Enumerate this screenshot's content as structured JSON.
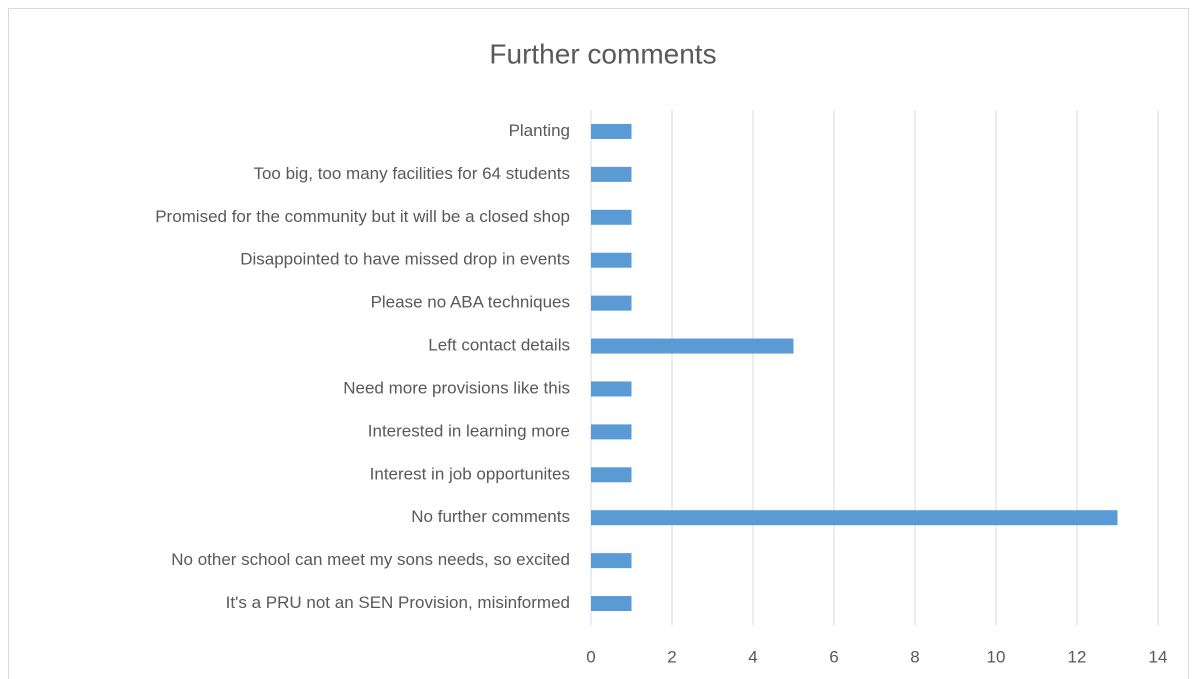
{
  "chart_data": {
    "type": "hbar",
    "title": "Further comments",
    "categories": [
      "Planting",
      "Too big, too many facilities for 64 students",
      "Promised for the community but it will be a closed shop",
      "Disappointed to have missed drop in events",
      "Please no ABA techniques",
      "Left contact details",
      "Need more provisions like this",
      "Interested in learning more",
      "Interest in job opportunites",
      "No further comments",
      "No other school can meet my sons needs, so excited",
      "It's a PRU not an SEN Provision, misinformed"
    ],
    "values": [
      1,
      1,
      1,
      1,
      1,
      5,
      1,
      1,
      1,
      13,
      1,
      1
    ],
    "color": "#5b9bd5",
    "xlim": [
      0,
      14
    ],
    "xticks": [
      0,
      2,
      4,
      6,
      8,
      10,
      12,
      14
    ],
    "grid": true
  }
}
